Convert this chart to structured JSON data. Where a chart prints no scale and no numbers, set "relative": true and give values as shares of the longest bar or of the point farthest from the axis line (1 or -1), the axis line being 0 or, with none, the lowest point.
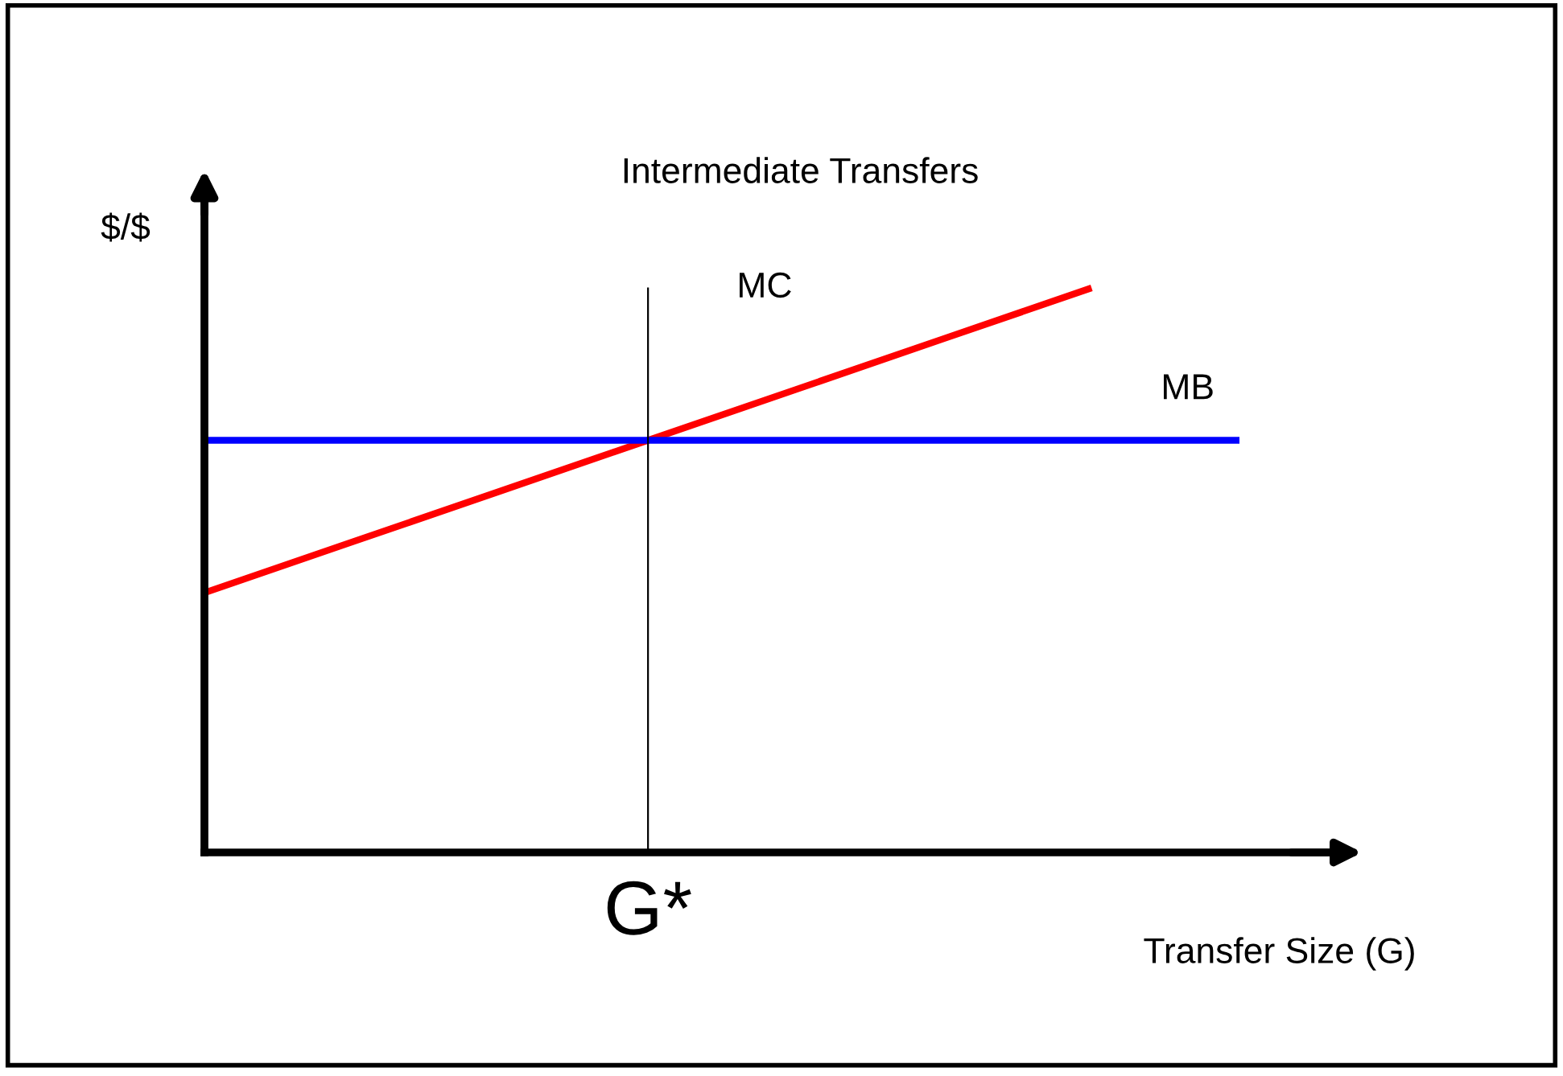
{
  "chart_data": {
    "type": "line",
    "title": "Intermediate Transfers",
    "xlabel": "Transfer Size (G)",
    "ylabel": "$/$",
    "relative": true,
    "categories": [
      null,
      null,
      null,
      null,
      null,
      null,
      null,
      null
    ],
    "series": [
      {
        "name": "MC",
        "color": "#ff0000",
        "values": [
          0.46,
          0.55,
          0.64,
          0.73,
          0.82,
          0.91,
          1,
          null
        ]
      },
      {
        "name": "MB",
        "color": "#0000ff",
        "values": [
          0.73,
          0.73,
          0.73,
          0.73,
          0.73,
          0.73,
          0.73,
          0.73
        ]
      }
    ],
    "annotations": [
      "G*"
    ],
    "legend": false,
    "marker": "none",
    "line_style": "solid"
  }
}
